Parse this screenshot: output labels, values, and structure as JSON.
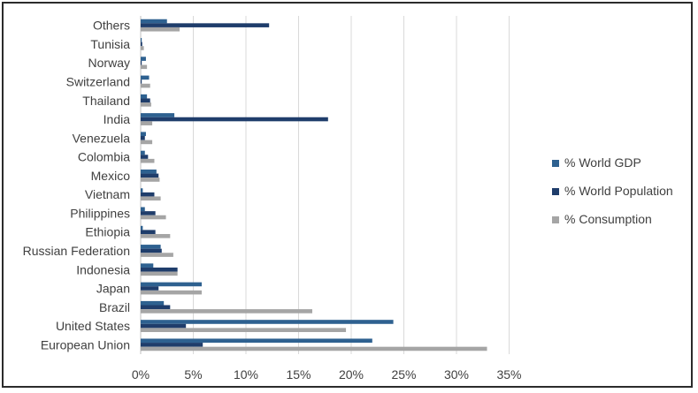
{
  "chart_data": {
    "type": "bar",
    "orientation": "horizontal",
    "categories": [
      "European Union",
      "United States",
      "Brazil",
      "Japan",
      "Indonesia",
      "Russian Federation",
      "Ethiopia",
      "Philippines",
      "Vietnam",
      "Mexico",
      "Colombia",
      "Venezuela",
      "India",
      "Thailand",
      "Switzerland",
      "Norway",
      "Tunisia",
      "Others"
    ],
    "series": [
      {
        "name": "% World GDP",
        "color": "#2e6190",
        "values": [
          22.0,
          24.0,
          2.2,
          5.8,
          1.2,
          1.9,
          0.2,
          0.4,
          0.2,
          1.5,
          0.4,
          0.5,
          3.2,
          0.6,
          0.8,
          0.5,
          0.1,
          2.5
        ]
      },
      {
        "name": "% World Population",
        "color": "#1f3d6b",
        "values": [
          5.9,
          4.3,
          2.8,
          1.7,
          3.5,
          2.0,
          1.4,
          1.4,
          1.3,
          1.7,
          0.7,
          0.4,
          17.8,
          0.9,
          0.1,
          0.1,
          0.15,
          12.2
        ]
      },
      {
        "name": "% Consumption",
        "color": "#a5a5a5",
        "values": [
          32.9,
          19.5,
          16.3,
          5.8,
          3.5,
          3.1,
          2.8,
          2.4,
          1.9,
          1.8,
          1.3,
          1.1,
          1.1,
          1.0,
          0.9,
          0.6,
          0.3,
          3.7
        ]
      }
    ],
    "x_ticks": [
      "0%",
      "5%",
      "10%",
      "15%",
      "20%",
      "25%",
      "30%",
      "35%"
    ],
    "x_tick_values": [
      0,
      5,
      10,
      15,
      20,
      25,
      30,
      35
    ],
    "xlim": [
      0,
      35
    ],
    "grid": "vertical",
    "legend_position": "right"
  }
}
